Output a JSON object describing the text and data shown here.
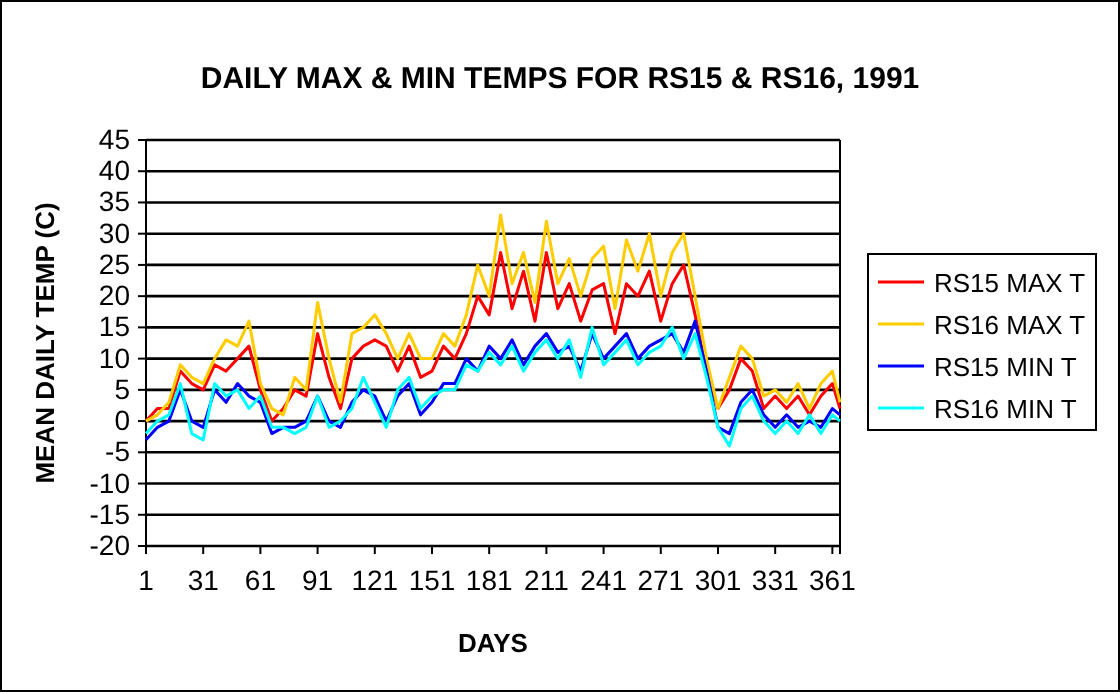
{
  "chart_data": {
    "type": "line",
    "title": "DAILY MAX & MIN TEMPS FOR RS15 & RS16, 1991",
    "xlabel": "DAYS",
    "ylabel": "MEAN DAILY TEMP (C)",
    "x": [
      1,
      7,
      13,
      19,
      25,
      31,
      37,
      43,
      49,
      55,
      61,
      67,
      73,
      79,
      85,
      91,
      97,
      103,
      109,
      115,
      121,
      127,
      133,
      139,
      145,
      151,
      157,
      163,
      169,
      175,
      181,
      187,
      193,
      199,
      205,
      211,
      217,
      223,
      229,
      235,
      241,
      247,
      253,
      259,
      265,
      271,
      277,
      283,
      289,
      295,
      301,
      307,
      313,
      319,
      325,
      331,
      337,
      343,
      349,
      355,
      361,
      365
    ],
    "xlim": [
      1,
      365
    ],
    "xticks": [
      1,
      31,
      61,
      91,
      121,
      151,
      181,
      211,
      241,
      271,
      301,
      331,
      361
    ],
    "ylim": [
      -20,
      45
    ],
    "yticks": [
      -20,
      -15,
      -10,
      -5,
      0,
      5,
      10,
      15,
      20,
      25,
      30,
      35,
      40,
      45
    ],
    "grid": "y",
    "legend": "right",
    "marker": "none",
    "line_style": "solid",
    "series": [
      {
        "name": "RS15 MAX T",
        "color": "#ff0000",
        "values": [
          0,
          2,
          2,
          8,
          6,
          5,
          9,
          8,
          10,
          12,
          5,
          0,
          2,
          5,
          4,
          14,
          7,
          2,
          10,
          12,
          13,
          12,
          8,
          12,
          7,
          8,
          12,
          10,
          14,
          20,
          17,
          27,
          18,
          24,
          16,
          27,
          18,
          22,
          16,
          21,
          22,
          14,
          22,
          20,
          24,
          16,
          22,
          25,
          17,
          8,
          2,
          5,
          10,
          8,
          2,
          4,
          2,
          4,
          1,
          4,
          6,
          2
        ]
      },
      {
        "name": "RS16 MAX T",
        "color": "#ffcc00",
        "values": [
          0,
          1,
          3,
          9,
          7,
          6,
          10,
          13,
          12,
          16,
          6,
          2,
          1,
          7,
          5,
          19,
          10,
          3,
          14,
          15,
          17,
          14,
          10,
          14,
          10,
          10,
          14,
          12,
          17,
          25,
          20,
          33,
          22,
          27,
          19,
          32,
          22,
          26,
          20,
          26,
          28,
          18,
          29,
          24,
          30,
          20,
          27,
          30,
          20,
          10,
          2,
          7,
          12,
          10,
          4,
          5,
          3,
          6,
          2,
          6,
          8,
          3
        ]
      },
      {
        "name": "RS15 MIN T",
        "color": "#0000ff",
        "values": [
          -3,
          -1,
          0,
          5,
          0,
          -1,
          5,
          3,
          6,
          4,
          3,
          -2,
          -1,
          -1,
          0,
          4,
          0,
          -1,
          3,
          5,
          4,
          0,
          4,
          6,
          1,
          3,
          6,
          6,
          10,
          8,
          12,
          10,
          13,
          9,
          12,
          14,
          11,
          12,
          8,
          14,
          10,
          12,
          14,
          10,
          12,
          13,
          14,
          11,
          16,
          8,
          -1,
          -2,
          3,
          5,
          1,
          -1,
          1,
          -1,
          0,
          -1,
          2,
          1
        ]
      },
      {
        "name": "RS16 MIN T",
        "color": "#00ffff",
        "values": [
          -2,
          0,
          1,
          6,
          -2,
          -3,
          6,
          4,
          5,
          2,
          4,
          -1,
          -1,
          -2,
          -1,
          4,
          -1,
          0,
          2,
          7,
          3,
          -1,
          5,
          7,
          2,
          4,
          5,
          5,
          9,
          8,
          11,
          9,
          12,
          8,
          11,
          13,
          10,
          13,
          7,
          15,
          9,
          11,
          13,
          9,
          11,
          12,
          15,
          10,
          14,
          7,
          -1,
          -4,
          2,
          4,
          0,
          -2,
          0,
          -2,
          1,
          -2,
          1,
          0
        ]
      }
    ]
  }
}
